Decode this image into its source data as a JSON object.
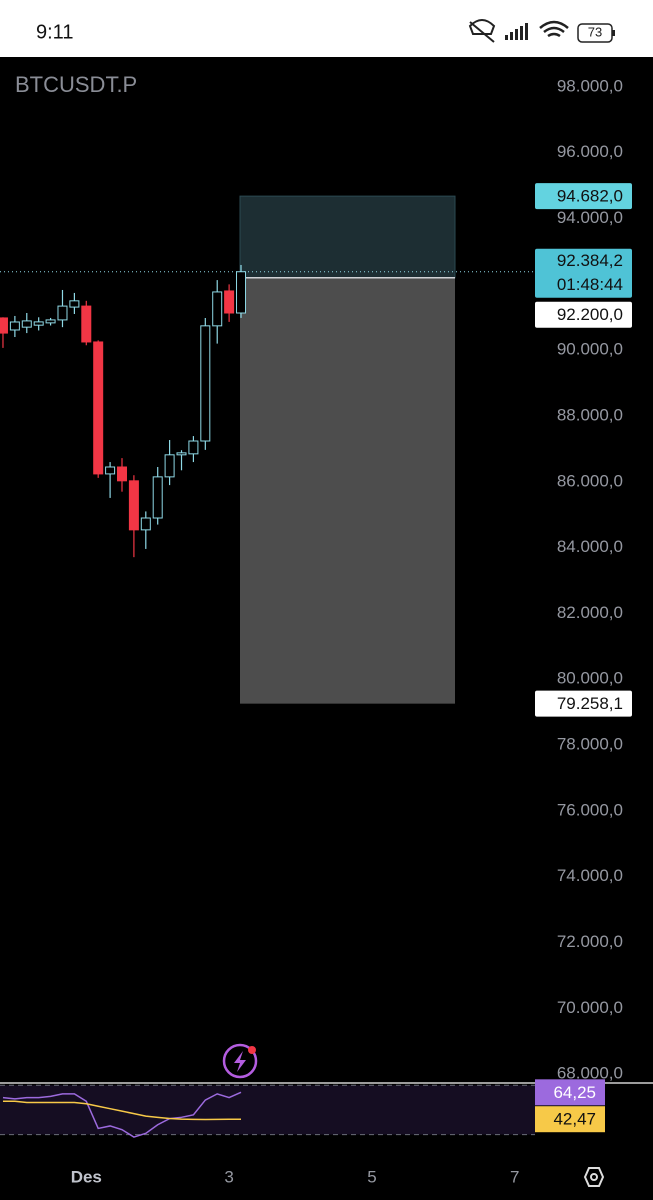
{
  "status_bar": {
    "time": "9:11",
    "battery": "73"
  },
  "chart_data": {
    "type": "candlestick",
    "title": "BTCUSDT.P",
    "x": [
      0,
      1,
      2,
      3,
      4,
      5,
      6,
      7,
      8,
      9,
      10,
      11,
      12,
      13,
      14,
      15,
      16,
      17,
      18,
      19,
      20
    ],
    "open": [
      90980,
      90614,
      90700,
      90760,
      90830,
      90920,
      91310,
      91340,
      90250,
      86240,
      86450,
      86030,
      84540,
      84900,
      86150,
      86820,
      86850,
      87240,
      90740,
      91800,
      91130
    ],
    "high": [
      91000,
      91040,
      91130,
      91000,
      90980,
      91830,
      91740,
      91500,
      90300,
      86600,
      86720,
      86200,
      85100,
      86450,
      87270,
      86960,
      87390,
      90980,
      92130,
      92000,
      92590
    ],
    "low": [
      90070,
      90400,
      90520,
      90600,
      90750,
      90700,
      91100,
      90150,
      86120,
      85510,
      85700,
      83710,
      83960,
      84700,
      85900,
      86350,
      86600,
      86970,
      90200,
      90860,
      90980
    ],
    "close": [
      90520,
      90857,
      90890,
      90860,
      90920,
      91340,
      91500,
      90250,
      86240,
      86450,
      86030,
      84540,
      84900,
      86150,
      86820,
      86880,
      87240,
      90740,
      91770,
      91130,
      92384.2
    ],
    "up_color": "#8fd9e6",
    "down_color": "#f23645",
    "xlim": [
      -0.25,
      44.7
    ],
    "xticks": [
      {
        "value": 7,
        "label": "Des"
      },
      {
        "value": 19,
        "label": "3"
      },
      {
        "value": 31,
        "label": "5"
      },
      {
        "value": 43,
        "label": "7"
      }
    ],
    "ylim": [
      67760,
      98910
    ],
    "yticks": [
      {
        "value": 98000,
        "label": "98.000,0"
      },
      {
        "value": 96000,
        "label": "96.000,0"
      },
      {
        "value": 94000,
        "label": "94.000,0"
      },
      {
        "value": 92000,
        "label": "92.000,0"
      },
      {
        "value": 90000,
        "label": "90.000,0"
      },
      {
        "value": 88000,
        "label": "88.000,0"
      },
      {
        "value": 86000,
        "label": "86.000,0"
      },
      {
        "value": 84000,
        "label": "84.000,0"
      },
      {
        "value": 82000,
        "label": "82.000,0"
      },
      {
        "value": 80000,
        "label": "80.000,0"
      },
      {
        "value": 78000,
        "label": "78.000,0"
      },
      {
        "value": 76000,
        "label": "76.000,0"
      },
      {
        "value": 74000,
        "label": "74.000,0"
      },
      {
        "value": 72000,
        "label": "72.000,0"
      },
      {
        "value": 70000,
        "label": "70.000,0"
      },
      {
        "value": 68000,
        "label": "68.000,0"
      }
    ],
    "last_price": {
      "value": 92384.2,
      "label": "92.384,2",
      "countdown": "01:48:44"
    },
    "position": {
      "stop": 94682,
      "stop_label": "94.682,0",
      "entry": 92200,
      "entry_label": "92.200,0",
      "target": 79258.1,
      "target_label": "79.258,1"
    },
    "rsi": {
      "ylim": [
        24,
        71
      ],
      "levels": [
        70,
        30
      ],
      "series": [
        {
          "color": "#9c6ade",
          "values": [
            60,
            59,
            60,
            60,
            61,
            63,
            63,
            57,
            35,
            37,
            34,
            28,
            31,
            38,
            43,
            44,
            46,
            58,
            63,
            60,
            64.25
          ],
          "last_label": "64,25"
        },
        {
          "color": "#f7c948",
          "values": [
            57,
            57,
            56,
            56,
            56,
            56,
            56,
            55,
            53,
            51,
            49,
            47,
            45,
            44,
            43,
            42.5,
            42.3,
            42.2,
            42.3,
            42.4,
            42.47
          ],
          "last_label": "42,47"
        }
      ]
    }
  }
}
